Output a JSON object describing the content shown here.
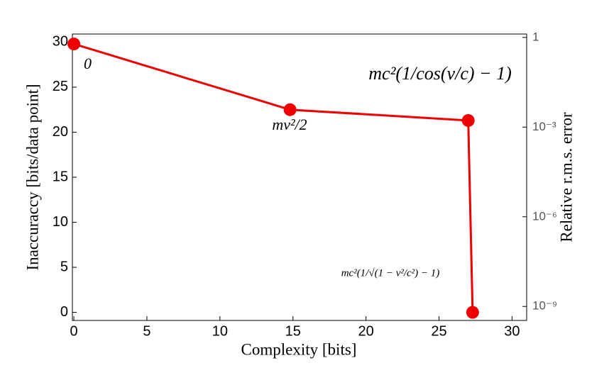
{
  "chart_data": {
    "type": "line",
    "x_label": "Complexity [bits]",
    "y_label": "Inaccuraccy [bits/data point]",
    "y2_label": "Relative r.m.s. error",
    "x": [
      0,
      14.8,
      27,
      27.3
    ],
    "series": [
      {
        "color": "#ee0000",
        "values": [
          29.8,
          22.5,
          21.3,
          0
        ]
      }
    ],
    "xlim": [
      -0.1,
      31
    ],
    "xticks": [
      0,
      5,
      10,
      15,
      20,
      25,
      30
    ],
    "ylim": [
      -0.9,
      30.9
    ],
    "yticks": [
      0,
      5,
      10,
      15,
      20,
      25,
      30
    ],
    "y2_log": true,
    "y2lim": [
      1.3,
      3.4e-10
    ],
    "y2ticks": [
      1,
      {
        "value": 0.001,
        "label": "10⁻³"
      },
      {
        "value": 1e-06,
        "label": "10⁻⁶"
      },
      {
        "value": 1e-09,
        "label": "10⁻⁹"
      }
    ],
    "annotations": [
      "0",
      "mv²/2",
      "mc²(1/cos(v/c) − 1)",
      "mc²(1/√(1 − v²/c²) − 1)"
    ]
  }
}
